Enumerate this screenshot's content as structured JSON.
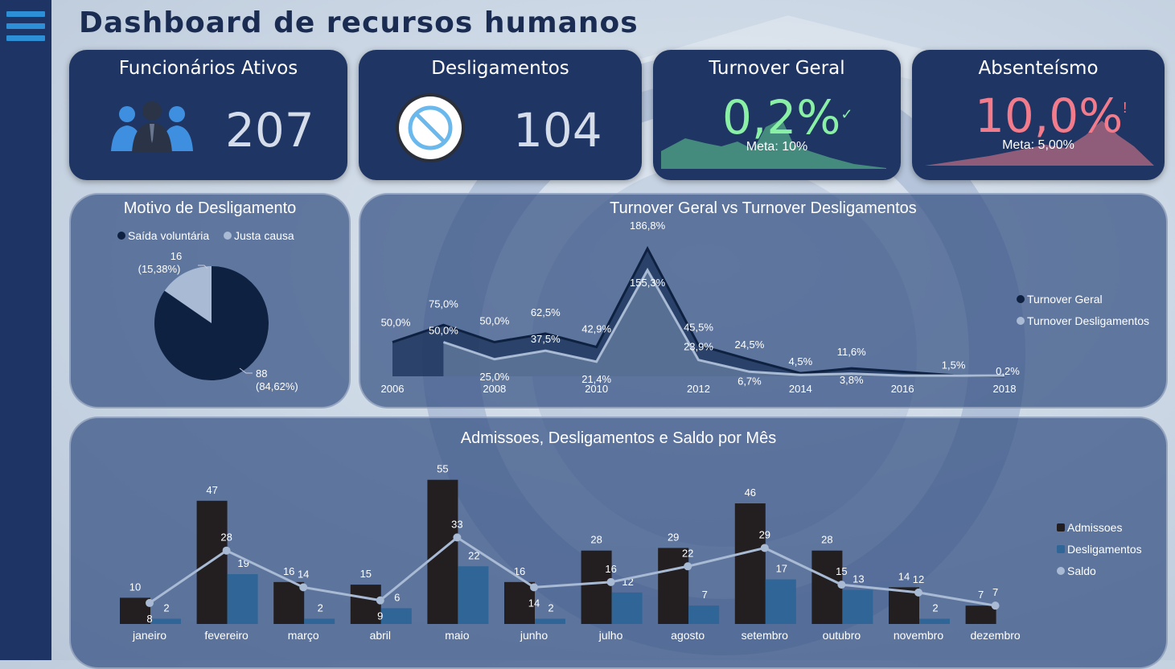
{
  "header": {
    "title": "Dashboard de recursos humanos"
  },
  "kpis": {
    "ativos": {
      "title": "Funcionários Ativos",
      "value": "207",
      "icon": "people-icon"
    },
    "desligamentos": {
      "title": "Desligamentos",
      "value": "104",
      "icon": "prohibited-icon"
    },
    "turnover": {
      "title": "Turnover Geral",
      "value": "0,2%",
      "status_mark": "✓",
      "meta": "Meta: 10%",
      "color": "#8af0a6"
    },
    "absenteismo": {
      "title": "Absenteísmo",
      "value": "10,0%",
      "status_mark": "!",
      "meta": "Meta: 5,00%",
      "color": "#f27b8c"
    }
  },
  "charts": {
    "motivo": {
      "title": "Motivo de Desligamento",
      "legend": [
        "Saída voluntária",
        "Justa causa"
      ],
      "label_justa_count": "16",
      "label_justa_pct": "(15,38%)",
      "label_voluntaria_count": "88",
      "label_voluntaria_pct": "(84,62%)"
    },
    "turnover": {
      "title": "Turnover Geral vs Turnover Desligamentos",
      "legend": [
        "Turnover Geral",
        "Turnover Desligamentos"
      ]
    },
    "admissoes": {
      "title": "Admissoes, Desligamentos e Saldo por Mês",
      "legend": [
        "Admissoes",
        "Desligamentos",
        "Saldo"
      ]
    }
  },
  "chart_data": [
    {
      "type": "pie",
      "title": "Motivo de Desligamento",
      "labels": [
        "Saída voluntária",
        "Justa causa"
      ],
      "values": [
        88,
        16
      ],
      "percent_labels": [
        "84,62%",
        "15,38%"
      ],
      "colors": [
        "#0e2140",
        "#a8bad4"
      ]
    },
    {
      "type": "area",
      "title": "Turnover Geral vs Turnover Desligamentos",
      "x": [
        2006,
        2007,
        2008,
        2009,
        2010,
        2011,
        2012,
        2013,
        2014,
        2015,
        2016,
        2017,
        2018
      ],
      "x_tick_labels": [
        "2006",
        "2008",
        "2010",
        "2012",
        "2014",
        "2016",
        "2018"
      ],
      "ylim": [
        0,
        200
      ],
      "series": [
        {
          "name": "Turnover Geral",
          "color": "#0e2140",
          "values": [
            50.0,
            75.0,
            50.0,
            62.5,
            42.9,
            186.8,
            45.5,
            24.5,
            4.5,
            11.6,
            null,
            1.5,
            0.2
          ],
          "labels": [
            "50,0%",
            "75,0%",
            "50,0%",
            "62,5%",
            "42,9%",
            "186,8%",
            "45,5%",
            "24,5%",
            "4,5%",
            "11,6%",
            "",
            "1,5%",
            "0,2%"
          ]
        },
        {
          "name": "Turnover Desligamentos",
          "color": "#a8bad4",
          "values": [
            null,
            50.0,
            25.0,
            37.5,
            21.4,
            155.3,
            23.9,
            6.7,
            null,
            3.8,
            null,
            null,
            null
          ],
          "labels": [
            "",
            "50,0%",
            "25,0%",
            "37,5%",
            "21,4%",
            "155,3%",
            "23,9%",
            "6,7%",
            "",
            "3,8%",
            "",
            "",
            ""
          ]
        }
      ]
    },
    {
      "type": "bar",
      "title": "Admissoes, Desligamentos e Saldo por Mês",
      "categories": [
        "janeiro",
        "fevereiro",
        "março",
        "abril",
        "maio",
        "junho",
        "julho",
        "agosto",
        "setembro",
        "outubro",
        "novembro",
        "dezembro"
      ],
      "ylim": [
        0,
        60
      ],
      "series": [
        {
          "name": "Admissoes",
          "kind": "bar",
          "color": "#231f20",
          "values": [
            10,
            47,
            16,
            15,
            55,
            16,
            28,
            29,
            46,
            28,
            14,
            7
          ]
        },
        {
          "name": "Desligamentos",
          "kind": "bar",
          "color": "#2f6597",
          "values": [
            2,
            19,
            2,
            6,
            22,
            2,
            12,
            7,
            17,
            13,
            2,
            null
          ]
        },
        {
          "name": "Saldo",
          "kind": "line",
          "color": "#a8bad4",
          "values": [
            8,
            28,
            14,
            9,
            33,
            14,
            16,
            22,
            29,
            15,
            12,
            7
          ]
        }
      ]
    }
  ]
}
